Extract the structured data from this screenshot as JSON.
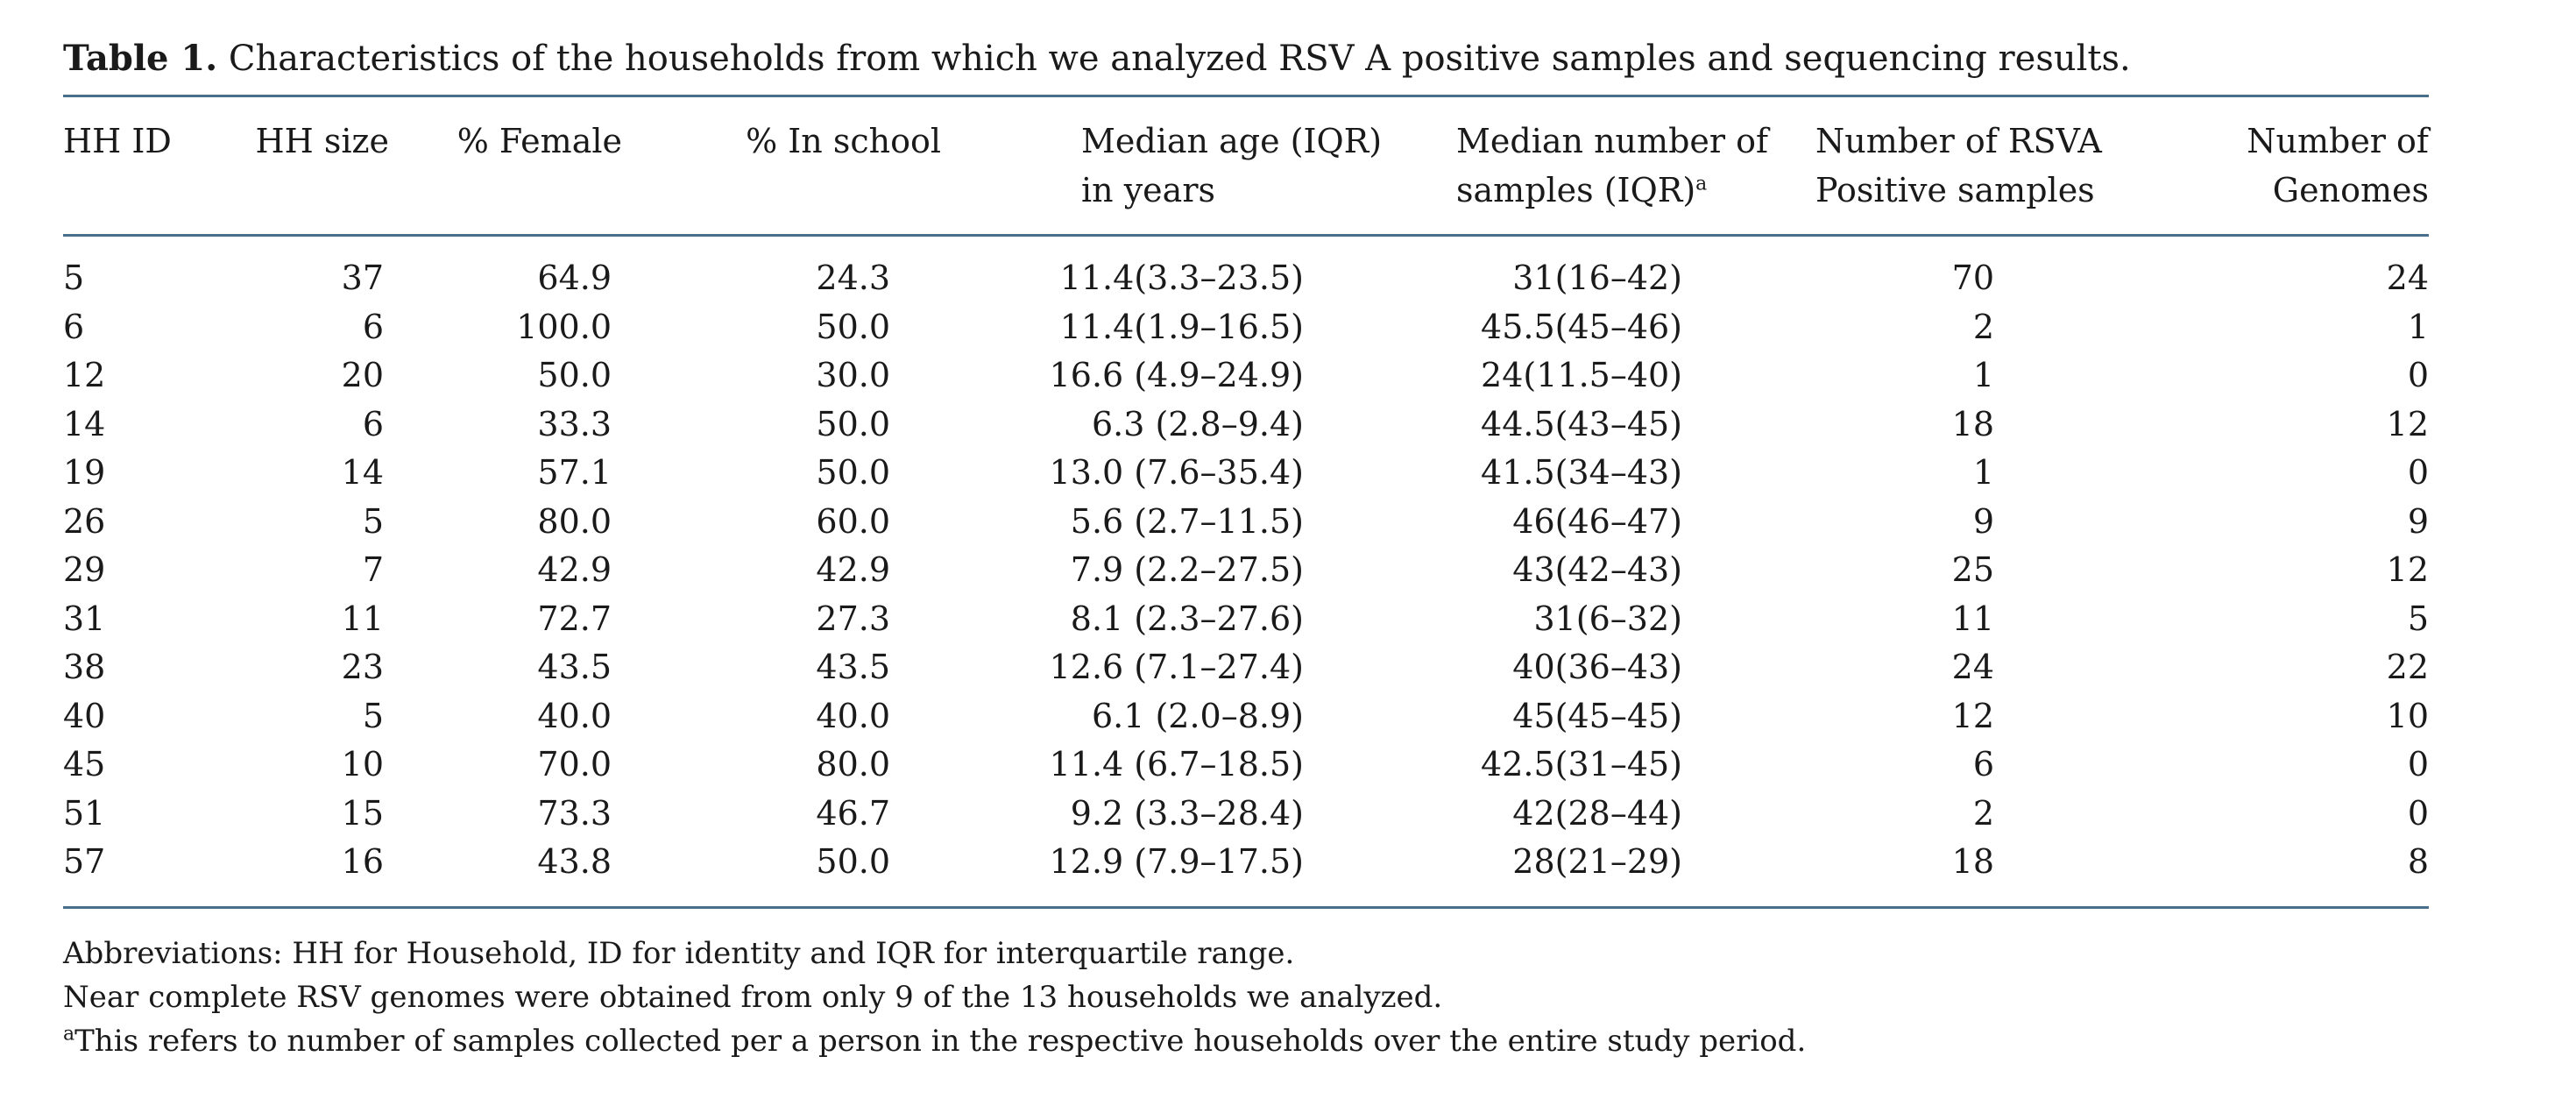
{
  "table": {
    "caption_lead": "Table 1.",
    "caption_text": "Characteristics of the households from which we analyzed RSV A positive samples and sequencing results.",
    "headers": {
      "hh_id": "HH ID",
      "hh_size": "HH size",
      "female": "% Female",
      "school": "% In school",
      "age_l1": "Median age (IQR)",
      "age_l2": "in years",
      "samples_l1": "Median number of",
      "samples_l2": "samples (IQR)",
      "samples_sup": "a",
      "rsva_l1": "Number of RSVA",
      "rsva_l2": "Positive samples",
      "genomes_l1": "Number of",
      "genomes_l2": "Genomes"
    },
    "rows": [
      [
        "5",
        "37",
        "64.9",
        "24.3",
        "11.4(3.3–23.5)",
        "31(16–42)",
        "70",
        "24"
      ],
      [
        "6",
        "6",
        "100.0",
        "50.0",
        "11.4(1.9–16.5)",
        "45.5(45–46)",
        "2",
        "1"
      ],
      [
        "12",
        "20",
        "50.0",
        "30.0",
        "16.6 (4.9–24.9)",
        "24(11.5–40)",
        "1",
        "0"
      ],
      [
        "14",
        "6",
        "33.3",
        "50.0",
        "6.3 (2.8–9.4)",
        "44.5(43–45)",
        "18",
        "12"
      ],
      [
        "19",
        "14",
        "57.1",
        "50.0",
        "13.0 (7.6–35.4)",
        "41.5(34–43)",
        "1",
        "0"
      ],
      [
        "26",
        "5",
        "80.0",
        "60.0",
        "5.6 (2.7–11.5)",
        "46(46–47)",
        "9",
        "9"
      ],
      [
        "29",
        "7",
        "42.9",
        "42.9",
        "7.9 (2.2–27.5)",
        "43(42–43)",
        "25",
        "12"
      ],
      [
        "31",
        "11",
        "72.7",
        "27.3",
        "8.1 (2.3–27.6)",
        "31(6–32)",
        "11",
        "5"
      ],
      [
        "38",
        "23",
        "43.5",
        "43.5",
        "12.6 (7.1–27.4)",
        "40(36–43)",
        "24",
        "22"
      ],
      [
        "40",
        "5",
        "40.0",
        "40.0",
        "6.1 (2.0–8.9)",
        "45(45–45)",
        "12",
        "10"
      ],
      [
        "45",
        "10",
        "70.0",
        "80.0",
        "11.4 (6.7–18.5)",
        "42.5(31–45)",
        "6",
        "0"
      ],
      [
        "51",
        "15",
        "73.3",
        "46.7",
        "9.2 (3.3–28.4)",
        "42(28–44)",
        "2",
        "0"
      ],
      [
        "57",
        "16",
        "43.8",
        "50.0",
        "12.9 (7.9–17.5)",
        "28(21–29)",
        "18",
        "8"
      ]
    ],
    "footnotes": {
      "abbreviations": "Abbreviations: HH for Household, ID for identity and IQR for interquartile range.",
      "genomes_note": "Near complete RSV genomes were obtained from only 9 of the 13 households we analyzed.",
      "sup_mark": "a",
      "sup_note": "This refers to number of samples collected per a person in the respective households over the entire study period."
    }
  }
}
